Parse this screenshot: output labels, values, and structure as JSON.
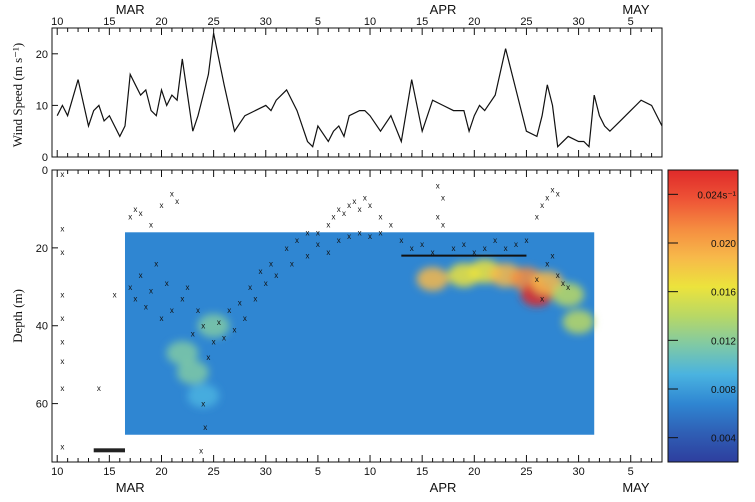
{
  "chart_data": [
    {
      "type": "line",
      "ylabel": "Wind Speed (m s⁻¹)",
      "ylim": [
        0,
        25
      ],
      "yticks": [
        0,
        10,
        20
      ],
      "x_day_labels_top": [
        "10",
        "15",
        "20",
        "25",
        "30",
        "5",
        "10",
        "15",
        "20",
        "25",
        "30",
        "5"
      ],
      "month_labels_top": [
        "MAR",
        "APR",
        "MAY"
      ],
      "x_start_date": "Mar 10",
      "x_end_date": "May 7",
      "series": [
        {
          "x": [
            0,
            0.5,
            1,
            2,
            3,
            3.5,
            4,
            4.5,
            5,
            6,
            6.5,
            7,
            7.5,
            8,
            8.5,
            9,
            9.5,
            10,
            10.5,
            11,
            11.5,
            12,
            13,
            13.5,
            14,
            14.5,
            15,
            16,
            17,
            18,
            19,
            20,
            20.5,
            21,
            21.5,
            22,
            23,
            24,
            24.5,
            25,
            26,
            26.5,
            27,
            27.5,
            28,
            29,
            29.5,
            30,
            31,
            32,
            33,
            34,
            35,
            36,
            37,
            38,
            38.5,
            39,
            39.5,
            40,
            40.5,
            41,
            42,
            43,
            44,
            45,
            46,
            46.5,
            47,
            47.5,
            48,
            49,
            50,
            50.5,
            51,
            51.5,
            52,
            52.5,
            53,
            54,
            55,
            56,
            57,
            58
          ],
          "y": [
            8,
            10,
            8,
            15,
            6,
            9,
            10,
            7,
            8,
            4,
            6,
            16,
            14,
            12,
            13,
            9,
            8,
            13,
            10,
            12,
            11,
            19,
            5,
            8,
            12,
            16,
            24,
            14,
            5,
            8,
            9,
            10,
            9,
            11,
            12,
            13,
            9,
            3,
            2,
            6,
            3,
            5,
            6,
            4,
            8,
            9,
            9,
            8,
            5,
            8,
            3,
            15,
            5,
            11,
            10,
            9,
            9,
            9,
            5,
            8,
            10,
            9,
            12,
            21,
            13,
            5,
            4,
            8,
            14,
            10,
            2,
            4,
            3,
            3,
            2,
            12,
            8,
            6,
            5,
            7,
            9,
            11,
            10,
            6
          ]
        }
      ]
    },
    {
      "type": "heatmap",
      "ylabel": "Depth (m)",
      "ylim": [
        0,
        75
      ],
      "yticks": [
        0,
        20,
        40,
        60
      ],
      "x_day_labels_bottom": [
        "10",
        "15",
        "20",
        "25",
        "30",
        "5",
        "10",
        "15",
        "20",
        "25",
        "30",
        "5"
      ],
      "month_labels_bottom": [
        "MAR",
        "APR",
        "MAY"
      ],
      "colorbar_ticks": [
        "0.004",
        "0.008",
        "0.012",
        "0.016",
        "0.020",
        "0.024s⁻¹"
      ],
      "colorbar_range": [
        0.002,
        0.026
      ],
      "data_extent_days": [
        6.5,
        51.5
      ],
      "data_extent_depth_m": [
        16,
        68
      ],
      "colors": [
        "#2e3e9e",
        "#2f5fb5",
        "#2f86d2",
        "#4ab3e0",
        "#7fc9a6",
        "#b8d865",
        "#ece33c",
        "#f7b94a",
        "#f58c40",
        "#ee5336",
        "#df2a2a"
      ],
      "features": [
        {
          "day": 12,
          "depth": 47,
          "value": 0.012
        },
        {
          "day": 13,
          "depth": 52,
          "value": 0.011
        },
        {
          "day": 14,
          "depth": 58,
          "value": 0.01
        },
        {
          "day": 15,
          "depth": 40,
          "value": 0.011
        },
        {
          "day": 36,
          "depth": 28,
          "value": 0.018
        },
        {
          "day": 39,
          "depth": 27,
          "value": 0.017
        },
        {
          "day": 41,
          "depth": 26,
          "value": 0.016
        },
        {
          "day": 43,
          "depth": 27,
          "value": 0.018
        },
        {
          "day": 45,
          "depth": 28,
          "value": 0.021
        },
        {
          "day": 46,
          "depth": 32,
          "value": 0.024
        },
        {
          "day": 47,
          "depth": 29,
          "value": 0.019
        },
        {
          "day": 49,
          "depth": 32,
          "value": 0.015
        },
        {
          "day": 50,
          "depth": 39,
          "value": 0.013
        }
      ],
      "markers": [
        [
          0.5,
          1
        ],
        [
          0.5,
          15
        ],
        [
          0.5,
          21
        ],
        [
          0.5,
          32
        ],
        [
          0.5,
          38
        ],
        [
          0.5,
          44
        ],
        [
          0.5,
          49
        ],
        [
          0.5,
          56
        ],
        [
          0.5,
          71
        ],
        [
          4,
          56
        ],
        [
          5.5,
          32
        ],
        [
          7,
          12
        ],
        [
          7.5,
          10
        ],
        [
          8,
          11
        ],
        [
          9,
          14
        ],
        [
          10,
          9
        ],
        [
          11,
          6
        ],
        [
          11.5,
          8
        ],
        [
          7,
          30
        ],
        [
          7.5,
          33
        ],
        [
          8,
          27
        ],
        [
          8.5,
          35
        ],
        [
          9,
          31
        ],
        [
          9.5,
          24
        ],
        [
          10,
          38
        ],
        [
          10.5,
          29
        ],
        [
          11,
          36
        ],
        [
          12,
          33
        ],
        [
          12.5,
          30
        ],
        [
          13,
          42
        ],
        [
          13.5,
          36
        ],
        [
          14,
          40
        ],
        [
          14.5,
          48
        ],
        [
          15,
          44
        ],
        [
          15.5,
          39
        ],
        [
          16,
          43
        ],
        [
          16.5,
          36
        ],
        [
          17,
          41
        ],
        [
          17.5,
          34
        ],
        [
          18,
          38
        ],
        [
          18.5,
          30
        ],
        [
          19,
          33
        ],
        [
          19.5,
          26
        ],
        [
          20,
          29
        ],
        [
          20.5,
          24
        ],
        [
          21,
          27
        ],
        [
          22,
          20
        ],
        [
          22.5,
          24
        ],
        [
          14,
          60
        ],
        [
          14.2,
          66
        ],
        [
          13.8,
          72
        ],
        [
          23,
          18
        ],
        [
          24,
          16
        ],
        [
          25,
          16
        ],
        [
          26,
          14
        ],
        [
          26.5,
          12
        ],
        [
          27,
          10
        ],
        [
          27.5,
          11
        ],
        [
          28,
          9
        ],
        [
          28.5,
          8
        ],
        [
          29,
          10
        ],
        [
          29.5,
          7
        ],
        [
          30,
          9
        ],
        [
          31,
          12
        ],
        [
          32,
          14
        ],
        [
          24,
          22
        ],
        [
          25,
          19
        ],
        [
          26,
          21
        ],
        [
          27,
          18
        ],
        [
          28,
          17
        ],
        [
          29,
          16
        ],
        [
          30,
          17
        ],
        [
          31,
          16
        ],
        [
          33,
          18
        ],
        [
          34,
          20
        ],
        [
          35,
          19
        ],
        [
          36,
          21
        ],
        [
          36.5,
          4
        ],
        [
          37,
          7
        ],
        [
          36.5,
          12
        ],
        [
          37,
          14
        ],
        [
          38,
          20
        ],
        [
          39,
          19
        ],
        [
          40,
          21
        ],
        [
          41,
          20
        ],
        [
          42,
          18
        ],
        [
          43,
          20
        ],
        [
          44,
          19
        ],
        [
          45,
          18
        ],
        [
          46,
          28
        ],
        [
          46.5,
          33
        ],
        [
          47,
          24
        ],
        [
          47.5,
          22
        ],
        [
          48,
          27
        ],
        [
          48.5,
          29
        ],
        [
          49,
          30
        ],
        [
          46,
          12
        ],
        [
          46.5,
          9
        ],
        [
          47,
          7
        ],
        [
          47.5,
          5
        ],
        [
          48,
          6
        ]
      ],
      "mixed_layer_run": {
        "day_start": 33,
        "day_end": 45,
        "depth": 22
      },
      "bottom_bar": {
        "day_start": 3.5,
        "day_end": 6.5,
        "depth": 72
      }
    }
  ]
}
